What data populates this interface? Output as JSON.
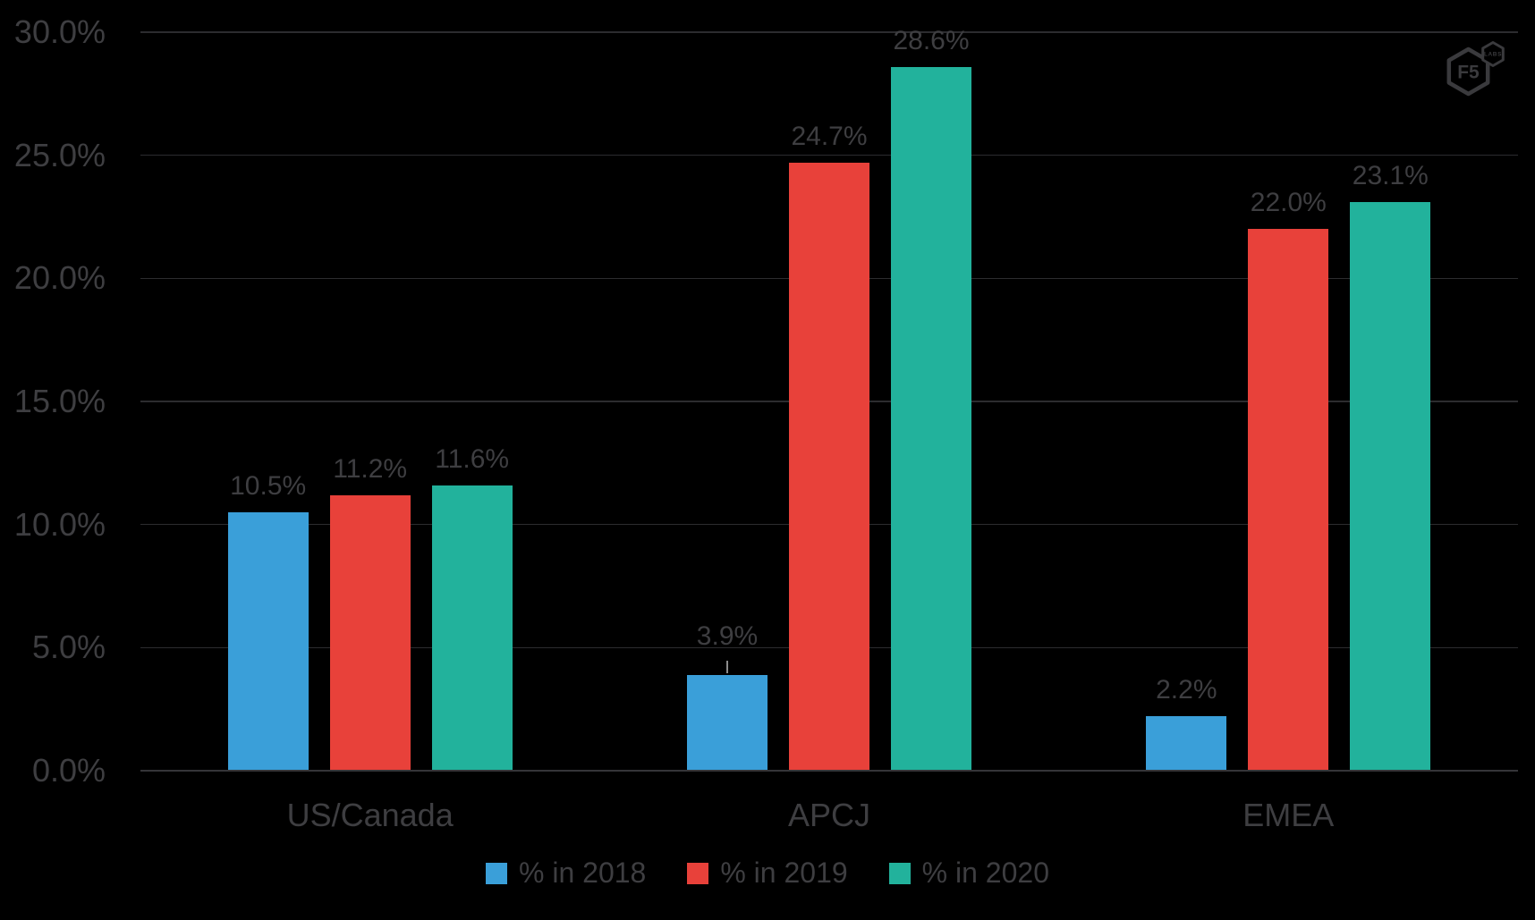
{
  "page": {
    "background": "#000000"
  },
  "style": {
    "text_color": "#3E3E41",
    "gridline_color": "#2C2C2F",
    "axis_color": "#353538",
    "leader_color": "#8C8C8C",
    "logo_color": "#3A3A3D"
  },
  "logo": {
    "name": "F5 Labs",
    "main_text": "F5",
    "badge_text": "LABS"
  },
  "chart_data": {
    "type": "bar",
    "title": "",
    "xlabel": "",
    "ylabel": "",
    "categories": [
      "US/Canada",
      "APCJ",
      "EMEA"
    ],
    "series": [
      {
        "name": "% in 2018",
        "color": "#3A9FD9",
        "values": [
          10.5,
          3.9,
          2.2
        ],
        "labels": [
          "10.5%",
          "3.9%",
          "2.2%"
        ]
      },
      {
        "name": "% in 2019",
        "color": "#E8413A",
        "values": [
          11.2,
          24.7,
          22.0
        ],
        "labels": [
          "11.2%",
          "24.7%",
          "22.0%"
        ]
      },
      {
        "name": "% in 2020",
        "color": "#22B29C",
        "values": [
          11.6,
          28.6,
          23.1
        ],
        "labels": [
          "11.6%",
          "28.6%",
          "23.1%"
        ]
      }
    ],
    "y_axis": {
      "min": 0,
      "max": 30,
      "step": 5,
      "tick_labels": [
        "0.0%",
        "5.0%",
        "10.0%",
        "15.0%",
        "20.0%",
        "25.0%",
        "30.0%"
      ]
    },
    "ylim": [
      0,
      30
    ],
    "grid": true,
    "legend": {
      "position": "bottom",
      "entries": [
        "% in 2018",
        "% in 2019",
        "% in 2020"
      ]
    },
    "label_leaders": [
      {
        "series": 0,
        "category": 1
      }
    ]
  }
}
